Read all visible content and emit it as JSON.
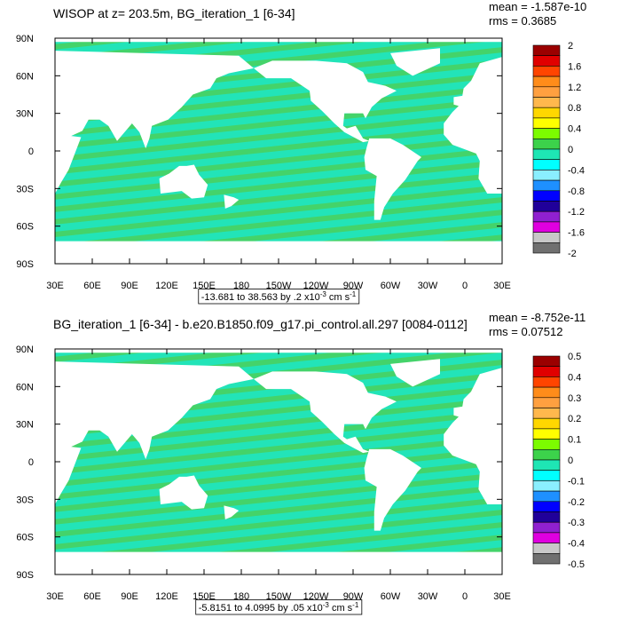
{
  "panels": [
    {
      "title": "WISOP at z= 203.5m, BG_iteration_1 [6-34]",
      "mean": "mean = -1.587e-10",
      "rms": "rms = 0.3685",
      "lat_labels": [
        "90N",
        "60N",
        "30N",
        "0",
        "30S",
        "60S",
        "90S"
      ],
      "lon_labels": [
        "30E",
        "60E",
        "90E",
        "120E",
        "150E",
        "180",
        "150W",
        "120W",
        "90W",
        "60W",
        "30W",
        "0",
        "30E"
      ],
      "colorbar_labels": [
        "2",
        "1.6",
        "1.2",
        "0.8",
        "0.4",
        "0",
        "-0.4",
        "-0.8",
        "-1.2",
        "-1.6",
        "-2"
      ],
      "range_note": [
        "-13.681 to 38.563 by .2 x10",
        "-3",
        " cm s",
        "-1"
      ]
    },
    {
      "title": "BG_iteration_1 [6-34] - b.e20.B1850.f09_g17.pi_control.all.297 [0084-0112]",
      "mean": "mean = -8.752e-11",
      "rms": "rms = 0.07512",
      "lat_labels": [
        "90N",
        "60N",
        "30N",
        "0",
        "30S",
        "60S",
        "90S"
      ],
      "lon_labels": [
        "30E",
        "60E",
        "90E",
        "120E",
        "150E",
        "180",
        "150W",
        "120W",
        "90W",
        "60W",
        "30W",
        "0",
        "30E"
      ],
      "colorbar_labels": [
        "0.5",
        "0.4",
        "0.3",
        "0.2",
        "0.1",
        "0",
        "-0.1",
        "-0.2",
        "-0.3",
        "-0.4",
        "-0.5"
      ],
      "range_note": [
        "-5.8151 to 4.0995 by .05 x10",
        "-3",
        " cm s",
        "-1"
      ]
    }
  ],
  "colors": [
    "#9b0000",
    "#e00000",
    "#ff4500",
    "#ff8c1a",
    "#ffa040",
    "#ffb84d",
    "#ffd700",
    "#ffff00",
    "#7cfc00",
    "#3cd24b",
    "#1ee6b4",
    "#00ffff",
    "#8aefff",
    "#1e90ff",
    "#0000ff",
    "#20009a",
    "#9020d0",
    "#e000e0",
    "#c8c8c8",
    "#707070"
  ]
}
